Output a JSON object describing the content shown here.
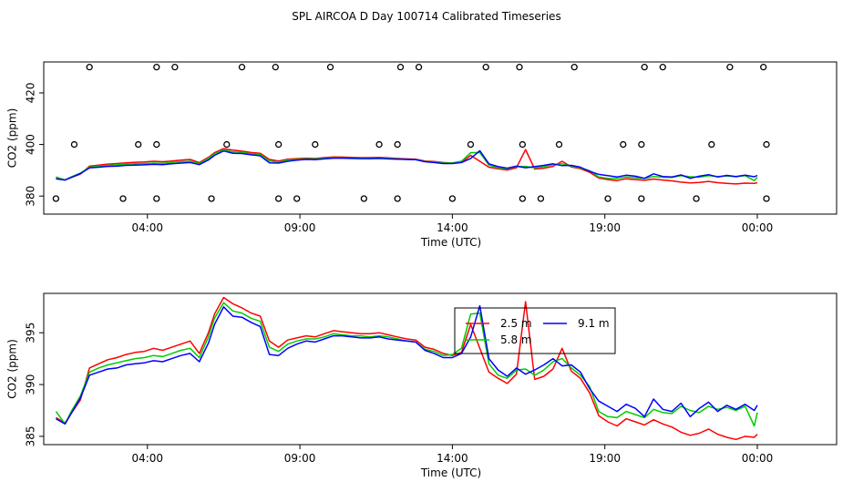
{
  "chart_data": [
    {
      "type": "line+scatter",
      "title": "SPL AIRCOA D  Day 100714  Calibrated Timeseries",
      "xlabel": "Time (UTC)",
      "ylabel": "CO2 (ppm)",
      "x_unit": "hours since 00:00 UTC",
      "xlim": [
        0.6,
        26.6
      ],
      "ylim": [
        373,
        432
      ],
      "x_ticks": [
        4,
        9,
        14,
        19,
        24
      ],
      "x_tick_labels": [
        "04:00",
        "09:00",
        "14:00",
        "19:00",
        "00:00"
      ],
      "y_ticks": [
        380,
        400,
        420
      ],
      "y_tick_labels": [
        "380",
        "400",
        "420"
      ],
      "grid": false,
      "calibration_points": [
        {
          "x": 1.0,
          "y": 379
        },
        {
          "x": 2.1,
          "y": 430
        },
        {
          "x": 1.6,
          "y": 400
        },
        {
          "x": 3.2,
          "y": 379
        },
        {
          "x": 3.7,
          "y": 400
        },
        {
          "x": 4.3,
          "y": 400
        },
        {
          "x": 4.3,
          "y": 379
        },
        {
          "x": 4.3,
          "y": 430
        },
        {
          "x": 4.9,
          "y": 430
        },
        {
          "x": 6.1,
          "y": 379
        },
        {
          "x": 6.6,
          "y": 400
        },
        {
          "x": 7.1,
          "y": 430
        },
        {
          "x": 8.2,
          "y": 430
        },
        {
          "x": 8.3,
          "y": 400
        },
        {
          "x": 8.3,
          "y": 379
        },
        {
          "x": 8.9,
          "y": 379
        },
        {
          "x": 9.5,
          "y": 400
        },
        {
          "x": 10.0,
          "y": 430
        },
        {
          "x": 11.1,
          "y": 379
        },
        {
          "x": 11.6,
          "y": 400
        },
        {
          "x": 12.2,
          "y": 400
        },
        {
          "x": 12.2,
          "y": 379
        },
        {
          "x": 12.3,
          "y": 430
        },
        {
          "x": 12.9,
          "y": 430
        },
        {
          "x": 14.0,
          "y": 379
        },
        {
          "x": 14.6,
          "y": 400
        },
        {
          "x": 15.1,
          "y": 430
        },
        {
          "x": 16.2,
          "y": 430
        },
        {
          "x": 16.3,
          "y": 400
        },
        {
          "x": 16.3,
          "y": 379
        },
        {
          "x": 16.9,
          "y": 379
        },
        {
          "x": 17.5,
          "y": 400
        },
        {
          "x": 18.0,
          "y": 430
        },
        {
          "x": 19.1,
          "y": 379
        },
        {
          "x": 19.6,
          "y": 400
        },
        {
          "x": 20.2,
          "y": 400
        },
        {
          "x": 20.2,
          "y": 379
        },
        {
          "x": 20.3,
          "y": 430
        },
        {
          "x": 20.9,
          "y": 430
        },
        {
          "x": 22.0,
          "y": 379
        },
        {
          "x": 22.5,
          "y": 400
        },
        {
          "x": 23.1,
          "y": 430
        },
        {
          "x": 24.2,
          "y": 430
        },
        {
          "x": 24.3,
          "y": 400
        },
        {
          "x": 24.3,
          "y": 379
        }
      ],
      "series_ref": "shared"
    },
    {
      "type": "line",
      "title": "",
      "xlabel": "Time (UTC)",
      "ylabel": "CO2 (ppm)",
      "x_unit": "hours since 00:00 UTC",
      "xlim": [
        0.6,
        26.6
      ],
      "ylim": [
        384.2,
        398.8
      ],
      "x_ticks": [
        4,
        9,
        14,
        19,
        24
      ],
      "x_tick_labels": [
        "04:00",
        "09:00",
        "14:00",
        "19:00",
        "00:00"
      ],
      "y_ticks": [
        385,
        390,
        395
      ],
      "y_tick_labels": [
        "385",
        "390",
        "395"
      ],
      "grid": false,
      "legend": {
        "placement": "top-center",
        "entries": [
          {
            "label": "2.5 m",
            "color": "#ff0000"
          },
          {
            "label": "5.8 m",
            "color": "#00cc00"
          },
          {
            "label": "9.1 m",
            "color": "#0000ff"
          }
        ]
      },
      "series_ref": "shared"
    }
  ],
  "series": [
    {
      "name": "2.5 m",
      "color": "#ff0000",
      "x": [
        1.0,
        1.3,
        1.5,
        1.8,
        2.1,
        2.4,
        2.7,
        3.0,
        3.3,
        3.6,
        3.9,
        4.2,
        4.5,
        4.8,
        5.1,
        5.4,
        5.7,
        6.0,
        6.2,
        6.5,
        6.8,
        7.1,
        7.4,
        7.7,
        8.0,
        8.3,
        8.6,
        8.9,
        9.2,
        9.5,
        9.8,
        10.1,
        10.4,
        10.7,
        11.0,
        11.3,
        11.6,
        11.9,
        12.2,
        12.5,
        12.8,
        13.1,
        13.4,
        13.7,
        14.0,
        14.3,
        14.6,
        14.9,
        15.2,
        15.5,
        15.8,
        16.1,
        16.4,
        16.7,
        17.0,
        17.3,
        17.6,
        17.9,
        18.2,
        18.5,
        18.8,
        19.1,
        19.4,
        19.7,
        20.0,
        20.3,
        20.6,
        20.9,
        21.2,
        21.5,
        21.8,
        22.1,
        22.4,
        22.7,
        23.0,
        23.3,
        23.6,
        23.9,
        24.0
      ],
      "values": [
        386.8,
        386.3,
        387.2,
        388.5,
        391.6,
        392.0,
        392.4,
        392.6,
        392.9,
        393.1,
        393.2,
        393.5,
        393.3,
        393.6,
        393.9,
        394.2,
        393.0,
        395.0,
        396.8,
        398.4,
        397.8,
        397.4,
        396.9,
        396.6,
        394.2,
        393.6,
        394.3,
        394.5,
        394.7,
        394.6,
        394.9,
        395.2,
        395.1,
        395.0,
        394.9,
        394.9,
        395.0,
        394.8,
        394.6,
        394.4,
        394.3,
        393.6,
        393.4,
        393.0,
        392.8,
        393.1,
        395.8,
        393.5,
        391.2,
        390.6,
        390.1,
        391.0,
        398.0,
        390.5,
        390.8,
        391.5,
        393.5,
        391.3,
        390.6,
        389.2,
        387.0,
        386.4,
        386.0,
        386.7,
        386.4,
        386.1,
        386.6,
        386.2,
        385.9,
        385.4,
        385.1,
        385.3,
        385.7,
        385.2,
        384.9,
        384.7,
        385.0,
        384.9,
        385.2
      ]
    },
    {
      "name": "5.8 m",
      "color": "#00cc00",
      "x": [
        1.0,
        1.3,
        1.5,
        1.8,
        2.1,
        2.4,
        2.7,
        3.0,
        3.3,
        3.6,
        3.9,
        4.2,
        4.5,
        4.8,
        5.1,
        5.4,
        5.7,
        6.0,
        6.2,
        6.5,
        6.8,
        7.1,
        7.4,
        7.7,
        8.0,
        8.3,
        8.6,
        8.9,
        9.2,
        9.5,
        9.8,
        10.1,
        10.4,
        10.7,
        11.0,
        11.3,
        11.6,
        11.9,
        12.2,
        12.5,
        12.8,
        13.1,
        13.4,
        13.7,
        14.0,
        14.3,
        14.6,
        14.9,
        15.2,
        15.5,
        15.8,
        16.1,
        16.4,
        16.7,
        17.0,
        17.3,
        17.6,
        17.9,
        18.2,
        18.5,
        18.8,
        19.1,
        19.4,
        19.7,
        20.0,
        20.3,
        20.6,
        20.9,
        21.2,
        21.5,
        21.8,
        22.1,
        22.4,
        22.7,
        23.0,
        23.3,
        23.6,
        23.9,
        24.0
      ],
      "values": [
        387.4,
        386.2,
        387.4,
        388.9,
        391.2,
        391.6,
        391.9,
        392.1,
        392.3,
        392.5,
        392.6,
        392.8,
        392.7,
        393.0,
        393.3,
        393.5,
        392.6,
        394.6,
        396.4,
        397.9,
        397.1,
        396.9,
        396.4,
        396.1,
        393.6,
        393.2,
        393.9,
        394.2,
        394.4,
        394.4,
        394.6,
        394.9,
        394.8,
        394.7,
        394.7,
        394.6,
        394.7,
        394.6,
        394.4,
        394.2,
        394.1,
        393.4,
        393.2,
        392.8,
        392.9,
        393.5,
        396.8,
        396.9,
        392.0,
        390.9,
        390.6,
        391.4,
        391.5,
        390.9,
        391.4,
        392.2,
        392.5,
        391.6,
        390.9,
        389.8,
        387.4,
        386.9,
        386.8,
        387.4,
        387.1,
        386.8,
        387.6,
        387.3,
        387.2,
        387.9,
        387.5,
        387.3,
        387.9,
        387.6,
        387.8,
        387.5,
        387.9,
        386.0,
        387.3
      ]
    },
    {
      "name": "9.1 m",
      "color": "#0000ff",
      "x": [
        1.0,
        1.3,
        1.5,
        1.8,
        2.1,
        2.4,
        2.7,
        3.0,
        3.3,
        3.6,
        3.9,
        4.2,
        4.5,
        4.8,
        5.1,
        5.4,
        5.7,
        6.0,
        6.2,
        6.5,
        6.8,
        7.1,
        7.4,
        7.7,
        8.0,
        8.3,
        8.6,
        8.9,
        9.2,
        9.5,
        9.8,
        10.1,
        10.4,
        10.7,
        11.0,
        11.3,
        11.6,
        11.9,
        12.2,
        12.5,
        12.8,
        13.1,
        13.4,
        13.7,
        14.0,
        14.3,
        14.6,
        14.9,
        15.2,
        15.5,
        15.8,
        16.1,
        16.4,
        16.7,
        17.0,
        17.3,
        17.6,
        17.9,
        18.2,
        18.5,
        18.8,
        19.1,
        19.4,
        19.7,
        20.0,
        20.3,
        20.6,
        20.9,
        21.2,
        21.5,
        21.8,
        22.1,
        22.4,
        22.7,
        23.0,
        23.3,
        23.6,
        23.9,
        24.0
      ],
      "values": [
        386.7,
        386.2,
        387.2,
        388.7,
        390.9,
        391.2,
        391.5,
        391.6,
        391.9,
        392.0,
        392.1,
        392.3,
        392.2,
        392.5,
        392.8,
        393.0,
        392.2,
        394.0,
        395.8,
        397.5,
        396.6,
        396.5,
        396.0,
        395.6,
        392.9,
        392.8,
        393.5,
        393.9,
        394.2,
        394.1,
        394.4,
        394.7,
        394.7,
        394.6,
        394.5,
        394.5,
        394.6,
        394.4,
        394.3,
        394.2,
        394.1,
        393.3,
        393.0,
        392.6,
        392.6,
        393.0,
        394.6,
        397.6,
        392.5,
        391.4,
        390.8,
        391.6,
        391.0,
        391.4,
        391.9,
        392.5,
        391.8,
        391.9,
        391.2,
        389.6,
        388.4,
        387.9,
        387.4,
        388.1,
        387.7,
        386.9,
        388.6,
        387.6,
        387.4,
        388.2,
        386.9,
        387.7,
        388.3,
        387.4,
        388.0,
        387.6,
        388.1,
        387.5,
        388.0
      ]
    }
  ]
}
